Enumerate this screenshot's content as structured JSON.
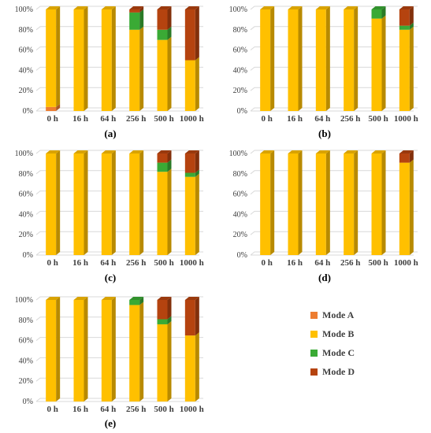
{
  "colors": {
    "Mode A": "#ED7D31",
    "Mode B": "#FFC000",
    "Mode C": "#3AAA35",
    "Mode D": "#B5430F"
  },
  "legend": [
    "Mode A",
    "Mode B",
    "Mode C",
    "Mode D"
  ],
  "chart_data": [
    {
      "type": "bar",
      "stacked": true,
      "label": "(a)",
      "categories": [
        "0 h",
        "16 h",
        "64 h",
        "256 h",
        "500 h",
        "1000 h"
      ],
      "ylim": [
        0,
        100
      ],
      "yticks": [
        "0%",
        "20%",
        "40%",
        "60%",
        "80%",
        "100%"
      ],
      "series": [
        {
          "name": "Mode A",
          "values": [
            4,
            0,
            0,
            0,
            0,
            0
          ]
        },
        {
          "name": "Mode B",
          "values": [
            96,
            100,
            100,
            80,
            70,
            50
          ]
        },
        {
          "name": "Mode C",
          "values": [
            0,
            0,
            0,
            17,
            10,
            0
          ]
        },
        {
          "name": "Mode D",
          "values": [
            0,
            0,
            0,
            3,
            20,
            50
          ]
        }
      ]
    },
    {
      "type": "bar",
      "stacked": true,
      "label": "(b)",
      "categories": [
        "0 h",
        "16 h",
        "64 h",
        "256 h",
        "500 h",
        "1000 h"
      ],
      "ylim": [
        0,
        100
      ],
      "yticks": [
        "0%",
        "20%",
        "40%",
        "60%",
        "80%",
        "100%"
      ],
      "series": [
        {
          "name": "Mode A",
          "values": [
            0,
            0,
            0,
            0,
            0,
            0
          ]
        },
        {
          "name": "Mode B",
          "values": [
            100,
            100,
            100,
            100,
            91,
            80
          ]
        },
        {
          "name": "Mode C",
          "values": [
            0,
            0,
            0,
            0,
            9,
            4
          ]
        },
        {
          "name": "Mode D",
          "values": [
            0,
            0,
            0,
            0,
            0,
            16
          ]
        }
      ]
    },
    {
      "type": "bar",
      "stacked": true,
      "label": "(c)",
      "categories": [
        "0 h",
        "16 h",
        "64 h",
        "256 h",
        "500 h",
        "1000 h"
      ],
      "ylim": [
        0,
        100
      ],
      "yticks": [
        "0%",
        "20%",
        "40%",
        "60%",
        "80%",
        "100%"
      ],
      "series": [
        {
          "name": "Mode A",
          "values": [
            0,
            0,
            0,
            0,
            0,
            0
          ]
        },
        {
          "name": "Mode B",
          "values": [
            100,
            100,
            100,
            100,
            82,
            77
          ]
        },
        {
          "name": "Mode C",
          "values": [
            0,
            0,
            0,
            0,
            9,
            4
          ]
        },
        {
          "name": "Mode D",
          "values": [
            0,
            0,
            0,
            0,
            9,
            19
          ]
        }
      ]
    },
    {
      "type": "bar",
      "stacked": true,
      "label": "(d)",
      "categories": [
        "0 h",
        "16 h",
        "64 h",
        "256 h",
        "500 h",
        "1000 h"
      ],
      "ylim": [
        0,
        100
      ],
      "yticks": [
        "0%",
        "20%",
        "40%",
        "60%",
        "80%",
        "100%"
      ],
      "series": [
        {
          "name": "Mode A",
          "values": [
            0,
            0,
            0,
            0,
            0,
            0
          ]
        },
        {
          "name": "Mode B",
          "values": [
            100,
            100,
            100,
            100,
            100,
            91
          ]
        },
        {
          "name": "Mode C",
          "values": [
            0,
            0,
            0,
            0,
            0,
            0
          ]
        },
        {
          "name": "Mode D",
          "values": [
            0,
            0,
            0,
            0,
            0,
            9
          ]
        }
      ]
    },
    {
      "type": "bar",
      "stacked": true,
      "label": "(e)",
      "categories": [
        "0 h",
        "16 h",
        "64 h",
        "256 h",
        "500 h",
        "1000 h"
      ],
      "ylim": [
        0,
        100
      ],
      "yticks": [
        "0%",
        "20%",
        "40%",
        "60%",
        "80%",
        "100%"
      ],
      "series": [
        {
          "name": "Mode A",
          "values": [
            0,
            0,
            0,
            0,
            0,
            0
          ]
        },
        {
          "name": "Mode B",
          "values": [
            100,
            100,
            100,
            95,
            76,
            65
          ]
        },
        {
          "name": "Mode C",
          "values": [
            0,
            0,
            0,
            5,
            5,
            0
          ]
        },
        {
          "name": "Mode D",
          "values": [
            0,
            0,
            0,
            0,
            19,
            35
          ]
        }
      ]
    }
  ]
}
